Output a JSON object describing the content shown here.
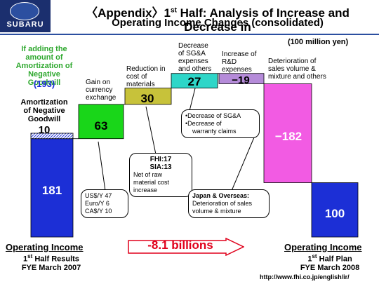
{
  "logo": {
    "text": "SUBARU"
  },
  "title": {
    "line1_a": "〈Appendix〉1",
    "line1_sup": "st",
    "line1_b": " Half: Analysis of Increase and Decrease in",
    "line2": "Operating Income Changes (consolidated)"
  },
  "unit": "(100 million yen)",
  "chart_data": {
    "type": "bar",
    "subtype": "waterfall",
    "categories": [
      "Operating Income 1st Half Results FYE March 2007",
      "Gain on currency exchange",
      "Reduction in cost of materials",
      "Decrease of SG&A expenses and others",
      "Increase of R&D expenses",
      "Deterioration of sales volume & mixture and others",
      "Operating Income 1st Half Plan FYE March 2008"
    ],
    "values": [
      181,
      63,
      30,
      27,
      -19,
      -182,
      100
    ],
    "extra": {
      "amortization_negative_goodwill": 10
    },
    "value_labels": [
      "181",
      "63",
      "30",
      "27",
      "−19",
      "−182",
      "100"
    ]
  },
  "labels": {
    "goodwill_note_l1": "If adding the",
    "goodwill_note_l2": "amount of",
    "goodwill_note_l3": "Amortization of",
    "goodwill_note_l4": "Negative Goodwill",
    "goodwill_total": "(193)",
    "amort_l1": "Amortization",
    "amort_l2": "of Negative",
    "amort_l3": "Goodwill",
    "amort_value": "10",
    "currency_l1": "Gain on",
    "currency_l2": "currency",
    "currency_l3": "exchange",
    "materials_l1": "Reduction in",
    "materials_l2": "cost of",
    "materials_l3": "materials",
    "sga_l1": "Decrease",
    "sga_l2": "of SG&A",
    "sga_l3": "expenses",
    "sga_l4": "and others",
    "rd_l1": "Increase of",
    "rd_l2": "R&D",
    "rd_l3": "expenses",
    "det_l1": "Deterioration of",
    "det_l2": "sales volume &",
    "det_l3": "mixture and others"
  },
  "callouts": {
    "fx_1": "US$/Y 47",
    "fx_2": "Euro/Y 6",
    "fx_3": "CA$/Y 10",
    "fhi": "FHI:17",
    "sia": "SIA:13",
    "net_1": "Net of raw",
    "net_2": "material cost",
    "net_3": "increase",
    "sga_1": "•Decrease of SG&A",
    "sga_2": "•Decrease of",
    "sga_3": "warranty claims",
    "jo_1": "Japan & Overseas:",
    "jo_2": "Deterioration of sales",
    "jo_3": "volume & mixture"
  },
  "arrow": {
    "text": "-8.1 billions"
  },
  "bottom_left": {
    "head": "Operating Income",
    "sub1_a": "1",
    "sub1_sup": "st",
    "sub1_b": " Half Results",
    "sub2": "FYE March 2007"
  },
  "bottom_right": {
    "head": "Operating Income",
    "sub1_a": "1",
    "sub1_sup": "st",
    "sub1_b": " Half Plan",
    "sub2": "FYE March 2008"
  },
  "url": "http://www.fhi.co.jp/english/ir/",
  "colors": {
    "blue": "#1c2fd6",
    "green": "#19d619",
    "olive": "#c7c23a",
    "teal": "#2ed6c8",
    "purple": "#b58bd9",
    "magenta": "#f25be3",
    "navy": "#1b2f6e",
    "red": "#e0001b"
  }
}
